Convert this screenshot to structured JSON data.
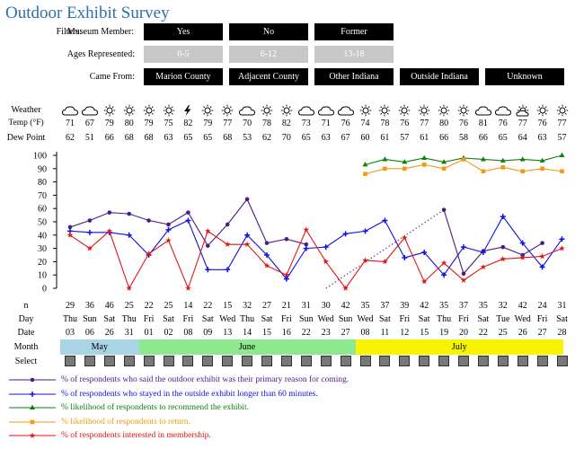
{
  "title": "Outdoor Exhibit Survey",
  "filters": {
    "heading": "Filters:",
    "museum_member": {
      "label": "Museum Member:",
      "options": [
        "Yes",
        "No",
        "Former"
      ]
    },
    "ages": {
      "label": "Ages Represented:",
      "options": [
        "0-5",
        "6-12",
        "13-18"
      ]
    },
    "came_from": {
      "label": "Came From:",
      "options": [
        "Marion County",
        "Adjacent County",
        "Other Indiana",
        "Outside Indiana",
        "Unknown"
      ]
    }
  },
  "row_labels": {
    "weather": "Weather",
    "temp": "Temp (°F)",
    "dew": "Dew Point",
    "n": "n",
    "day": "Day",
    "date": "Date",
    "month": "Month",
    "select": "Select"
  },
  "weather": [
    "cloudy",
    "cloudy",
    "sunny",
    "sunny",
    "sunny",
    "sunny",
    "storm",
    "sunny",
    "sunny",
    "cloudy",
    "sunny",
    "sunny",
    "cloudy",
    "cloudy",
    "cloudy",
    "sunny",
    "sunny",
    "sunny",
    "sunny",
    "sunny",
    "sunny",
    "cloudy",
    "cloudy",
    "partly-cloudy",
    "sunny",
    "sunny",
    "sunny"
  ],
  "temp": [
    71,
    67,
    79,
    80,
    79,
    75,
    82,
    79,
    77,
    70,
    78,
    82,
    73,
    71,
    76,
    74,
    78,
    76,
    77,
    80,
    76,
    81,
    76,
    77,
    76,
    77,
    71
  ],
  "dew": [
    62,
    51,
    66,
    68,
    68,
    63,
    65,
    65,
    68,
    53,
    62,
    70,
    65,
    63,
    67,
    60,
    61,
    57,
    61,
    66,
    58,
    66,
    65,
    64,
    63,
    57,
    ""
  ],
  "n": [
    29,
    36,
    46,
    25,
    22,
    25,
    14,
    22,
    15,
    32,
    27,
    21,
    31,
    30,
    42,
    35,
    37,
    39,
    42,
    35,
    37,
    35,
    32,
    42,
    24,
    31,
    30
  ],
  "day": [
    "Thu",
    "Sun",
    "Sat",
    "Thu",
    "Fri",
    "Sat",
    "Fri",
    "Sat",
    "Wed",
    "Thu",
    "Sat",
    "Fri",
    "Sun",
    "Wed",
    "Sun",
    "Wed",
    "Sat",
    "Fri",
    "Sat",
    "Thu",
    "Fri",
    "Sat",
    "Tue",
    "Wed",
    "Fri",
    "Sat",
    ""
  ],
  "day_full": [
    "Thu",
    "Sun",
    "Sat",
    "Thu",
    "Fri",
    "Sat",
    "Fri",
    "Sat",
    "Wed",
    "Thu",
    "Sat",
    "Fri",
    "Sun",
    "Wed",
    "Sun",
    "Wed",
    "Sat",
    "Fri",
    "Sat",
    "Thu",
    "Fri",
    "Sat",
    "Tue",
    "Wed",
    "Fri",
    "Sat",
    "Sat"
  ],
  "date": [
    "03",
    "06",
    "26",
    "31",
    "01",
    "02",
    "08",
    "09",
    "13",
    "14",
    "15",
    "16",
    "22",
    "23",
    "27",
    "08",
    "11",
    "12",
    "15",
    "19",
    "20",
    "22",
    "25",
    "26",
    "27",
    "28",
    ""
  ],
  "months": [
    {
      "label": "May",
      "color": "#a8d4e6"
    },
    {
      "label": "June",
      "color": "#8ee88e"
    },
    {
      "label": "July",
      "color": "#f8f400"
    }
  ],
  "legend": [
    {
      "text": "% of respondents who said the outdoor exhibit was their primary reason for coming.",
      "color": "#4b1a86",
      "marker": "circle"
    },
    {
      "text": "% of respondents who stayed in the outside exhibit longer than 60 minutes.",
      "color": "#1010e0",
      "marker": "plus"
    },
    {
      "text": "% likelihood of respondents to recommend the exhibit.",
      "color": "#0f7f0f",
      "marker": "triangle"
    },
    {
      "text": "% likelihood of respondents to return.",
      "color": "#f09a14",
      "marker": "square"
    },
    {
      "text": "% of respondents interested in membership.",
      "color": "#e01616",
      "marker": "star"
    }
  ],
  "chart_data": {
    "type": "line",
    "ylim": [
      0,
      100
    ],
    "yticks": [
      0,
      10,
      20,
      30,
      40,
      50,
      60,
      70,
      80,
      90,
      100
    ],
    "categories": [
      "Thu 03",
      "Sun 06",
      "Sat 26",
      "Thu 31",
      "Fri 01",
      "Sat 02",
      "Fri 08",
      "Sat 09",
      "Wed 13",
      "Thu 14",
      "Sat 15",
      "Fri 16",
      "Sun 22",
      "Wed 23",
      "Sun 27",
      "Wed 08",
      "Sat 11",
      "Fri 12",
      "Sat 15",
      "Thu 19",
      "Fri 20",
      "Sat 22",
      "Tue 25",
      "Wed 26",
      "Fri 27",
      "Sat 28",
      "Sat"
    ],
    "series": [
      {
        "name": "% of respondents who said the outdoor exhibit was their primary reason for coming.",
        "color": "#4b1a86",
        "marker": "circle",
        "values": [
          46,
          51,
          57,
          56,
          51,
          48,
          57,
          32,
          48,
          67,
          34,
          37,
          33,
          null,
          null,
          null,
          null,
          null,
          null,
          59,
          11,
          28,
          31,
          25,
          34,
          null,
          null
        ],
        "dotted_gap": [
          13,
          19
        ]
      },
      {
        "name": "% of respondents who stayed in the outside exhibit longer than 60 minutes.",
        "color": "#1010e0",
        "marker": "plus",
        "values": [
          43,
          42,
          42,
          40,
          25,
          44,
          51,
          14,
          14,
          40,
          25,
          7,
          30,
          31,
          41,
          43,
          51,
          23,
          27,
          10,
          31,
          27,
          54,
          34,
          16,
          37,
          null
        ]
      },
      {
        "name": "% likelihood of respondents to recommend the exhibit.",
        "color": "#0f7f0f",
        "marker": "triangle",
        "values": [
          null,
          null,
          null,
          null,
          null,
          null,
          null,
          null,
          null,
          null,
          null,
          null,
          null,
          null,
          null,
          93,
          97,
          95,
          98,
          95,
          98,
          97,
          96,
          97,
          96,
          100,
          null
        ]
      },
      {
        "name": "% likelihood of respondents to return.",
        "color": "#f09a14",
        "marker": "square",
        "values": [
          null,
          null,
          null,
          null,
          null,
          null,
          null,
          null,
          null,
          null,
          null,
          null,
          null,
          null,
          null,
          86,
          90,
          90,
          93,
          90,
          97,
          88,
          91,
          88,
          90,
          88,
          null
        ]
      },
      {
        "name": "% of respondents interested in membership.",
        "color": "#e01616",
        "marker": "star",
        "values": [
          40,
          30,
          43,
          0,
          26,
          36,
          0,
          43,
          33,
          33,
          17,
          10,
          44,
          20,
          0,
          21,
          20,
          38,
          5,
          19,
          6,
          16,
          22,
          23,
          24,
          30,
          null
        ]
      }
    ]
  }
}
